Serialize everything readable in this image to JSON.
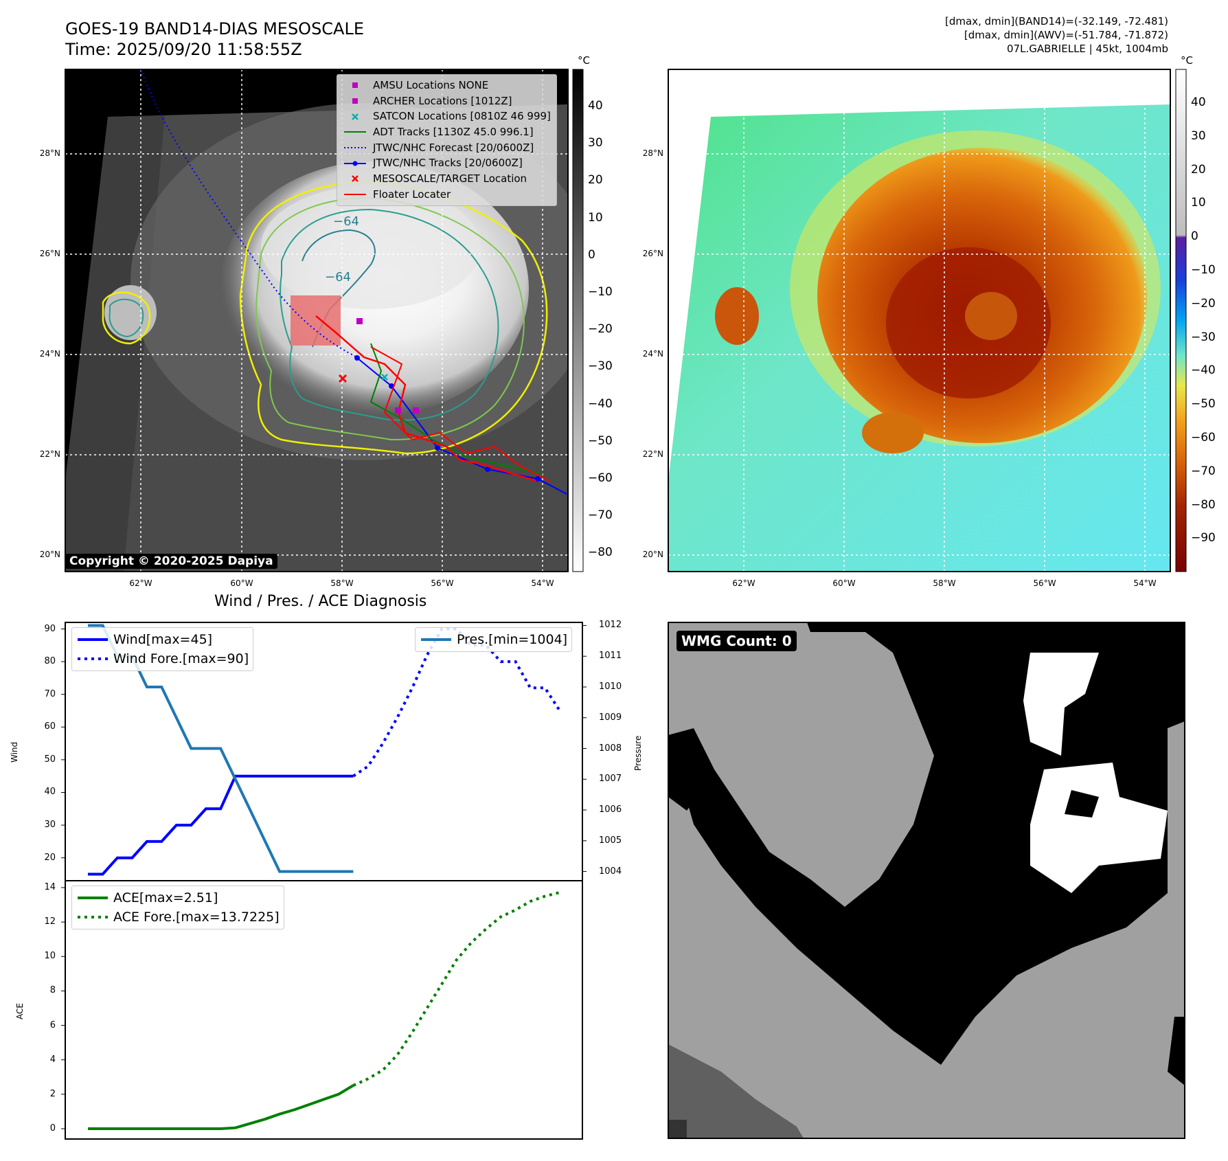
{
  "map_title": {
    "line1": "GOES-19 BAND14-DIAS MESOSCALE",
    "line2": "Time: 2025/09/20 11:58:55Z"
  },
  "info": {
    "line1": "[dmax, dmin](BAND14)=(-32.149, -72.481)",
    "line2": "[dmax, dmin](AWV)=(-51.784, -71.872)",
    "line3": "07L.GABRIELLE | 45kt, 1004mb"
  },
  "unit_label": "°C",
  "copyright": "Copyright © 2020-2025 Dapiya",
  "lat_labels": [
    "28°N",
    "26°N",
    "24°N",
    "22°N",
    "20°N"
  ],
  "lon_labels": [
    "62°W",
    "60°W",
    "58°W",
    "56°W",
    "54°W"
  ],
  "colorbar_left_ticks": [
    "40",
    "30",
    "20",
    "10",
    "0",
    "−10",
    "−20",
    "−30",
    "−40",
    "−50",
    "−60",
    "−70",
    "−80"
  ],
  "colorbar_right_ticks": [
    "40",
    "30",
    "20",
    "10",
    "0",
    "−10",
    "−20",
    "−30",
    "−40",
    "−50",
    "−60",
    "−70",
    "−80",
    "−90"
  ],
  "map_legend": [
    {
      "label": "AMSU Locations NONE",
      "symbol": "square",
      "color": "#c000c0"
    },
    {
      "label": "ARCHER Locations [1012Z]",
      "symbol": "square",
      "color": "#c000c0"
    },
    {
      "label": "SATCON Locations [0810Z 46 999]",
      "symbol": "x",
      "color": "#00b0b0"
    },
    {
      "label": "ADT Tracks [1130Z 45.0 996.1]",
      "symbol": "line",
      "color": "#008000"
    },
    {
      "label": "JTWC/NHC Forecast [20/0600Z]",
      "symbol": "dotted",
      "color": "#0000ff"
    },
    {
      "label": "JTWC/NHC Tracks [20/0600Z]",
      "symbol": "line-dot",
      "color": "#0000ff"
    },
    {
      "label": "MESOSCALE/TARGET Location",
      "symbol": "x",
      "color": "#ff0000"
    },
    {
      "label": "Floater Locater",
      "symbol": "line",
      "color": "#ff0000"
    }
  ],
  "contour_label": "−64",
  "wmg_label": "WMG Count: 0",
  "colors": {
    "wind": "#0000ff",
    "pressure": "#1f77b4",
    "ace": "#008000",
    "floater": "#ff0000"
  },
  "chart_data": [
    {
      "type": "line",
      "title": "Wind / Pres. / ACE Diagnosis",
      "ylabel": "Wind",
      "ylabel_right": "Pressure",
      "ylim": [
        13,
        92
      ],
      "ylim_right": [
        1003.7,
        1012.1
      ],
      "yticks": [
        20,
        30,
        40,
        50,
        60,
        70,
        80,
        90
      ],
      "yticks_right": [
        1004,
        1005,
        1006,
        1007,
        1008,
        1009,
        1010,
        1011,
        1012
      ],
      "series": [
        {
          "name": "Wind[max=45]",
          "style": "solid",
          "axis": "left",
          "values": [
            15,
            15,
            20,
            20,
            25,
            25,
            30,
            30,
            35,
            35,
            45,
            45,
            45,
            45,
            45,
            45,
            45,
            45,
            45
          ]
        },
        {
          "name": "Wind Fore.[max=90]",
          "style": "dotted",
          "axis": "left",
          "values": [
            null,
            null,
            null,
            null,
            null,
            null,
            null,
            null,
            null,
            null,
            null,
            null,
            null,
            null,
            null,
            null,
            null,
            null,
            45,
            48,
            55,
            63,
            72,
            82,
            90,
            90,
            85,
            85,
            80,
            80,
            72,
            72,
            65
          ]
        },
        {
          "name": "Pres.[min=1004]",
          "style": "solid",
          "axis": "right",
          "values": [
            1012,
            1012,
            1011,
            1011,
            1010,
            1010,
            1009,
            1008,
            1008,
            1008,
            1007,
            1006,
            1005,
            1004,
            1004,
            1004,
            1004,
            1004,
            1004
          ]
        }
      ]
    },
    {
      "type": "line",
      "ylabel": "ACE",
      "ylim": [
        -0.6,
        14.4
      ],
      "yticks": [
        0,
        2,
        4,
        6,
        8,
        10,
        12,
        14
      ],
      "series": [
        {
          "name": "ACE[max=2.51]",
          "style": "solid",
          "values": [
            0,
            0,
            0,
            0,
            0,
            0,
            0,
            0,
            0,
            0,
            0.05,
            0.3,
            0.55,
            0.85,
            1.1,
            1.4,
            1.7,
            2.0,
            2.51
          ]
        },
        {
          "name": "ACE Fore.[max=13.7225]",
          "style": "dotted",
          "values": [
            null,
            null,
            null,
            null,
            null,
            null,
            null,
            null,
            null,
            null,
            null,
            null,
            null,
            null,
            null,
            null,
            null,
            null,
            2.51,
            2.9,
            3.4,
            4.3,
            5.6,
            7.0,
            8.4,
            9.8,
            10.8,
            11.6,
            12.3,
            12.7,
            13.2,
            13.5,
            13.7225
          ]
        }
      ]
    }
  ]
}
